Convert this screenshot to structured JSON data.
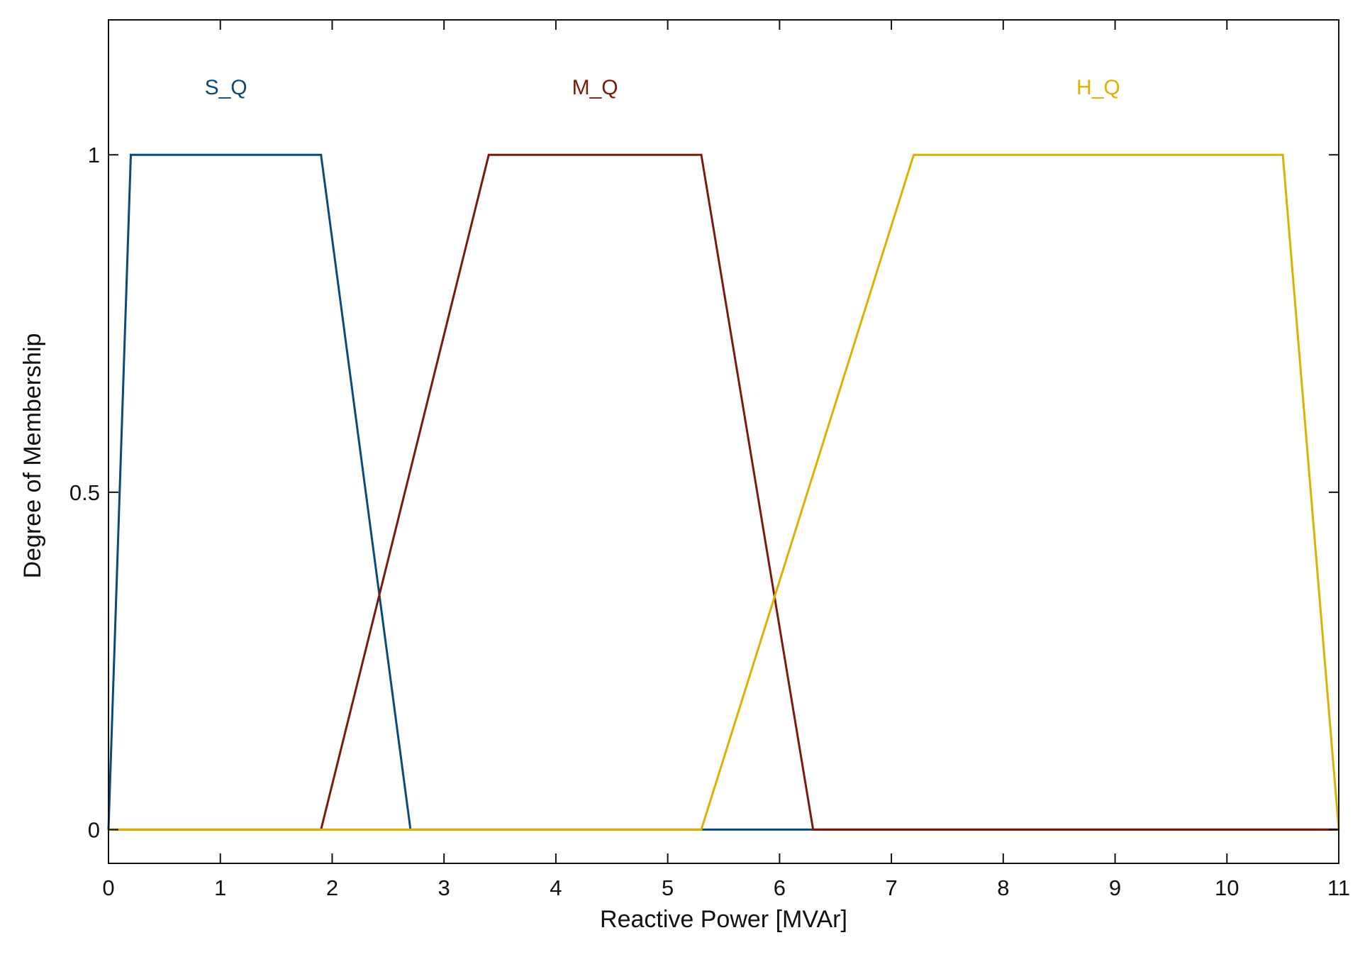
{
  "chart_data": {
    "type": "line",
    "title": "",
    "xlabel": "Reactive Power [MVAr]",
    "ylabel": "Degree of Membership",
    "xlim": [
      0,
      11
    ],
    "ylim": [
      -0.05,
      1.2
    ],
    "x_ticks": [
      0,
      1,
      2,
      3,
      4,
      5,
      6,
      7,
      8,
      9,
      10,
      11
    ],
    "x_tick_labels": [
      "0",
      "1",
      "2",
      "3",
      "4",
      "5",
      "6",
      "7",
      "8",
      "9",
      "10",
      "11"
    ],
    "y_ticks": [
      0,
      0.5,
      1
    ],
    "y_tick_labels": [
      "0",
      "0.5",
      "1"
    ],
    "grid": false,
    "series": [
      {
        "name": "S_Q",
        "color": "#0b4a7a",
        "x": [
          0,
          0.2,
          1.9,
          2.7,
          11
        ],
        "y": [
          0,
          1,
          1,
          0,
          0
        ]
      },
      {
        "name": "M_Q",
        "color": "#7a1a0a",
        "x": [
          0,
          1.9,
          3.4,
          5.3,
          6.3,
          11
        ],
        "y": [
          0,
          0,
          1,
          1,
          0,
          0
        ]
      },
      {
        "name": "H_Q",
        "color": "#e0b000",
        "x": [
          0,
          5.3,
          7.2,
          10.5,
          11
        ],
        "y": [
          0,
          0,
          1,
          1,
          0
        ]
      }
    ],
    "series_labels": [
      {
        "text": "S_Q",
        "x": 1.05,
        "y": 1.1,
        "color": "#0b4a7a"
      },
      {
        "text": "M_Q",
        "x": 4.35,
        "y": 1.1,
        "color": "#7a1a0a"
      },
      {
        "text": "H_Q",
        "x": 8.85,
        "y": 1.1,
        "color": "#e0b000"
      }
    ]
  }
}
